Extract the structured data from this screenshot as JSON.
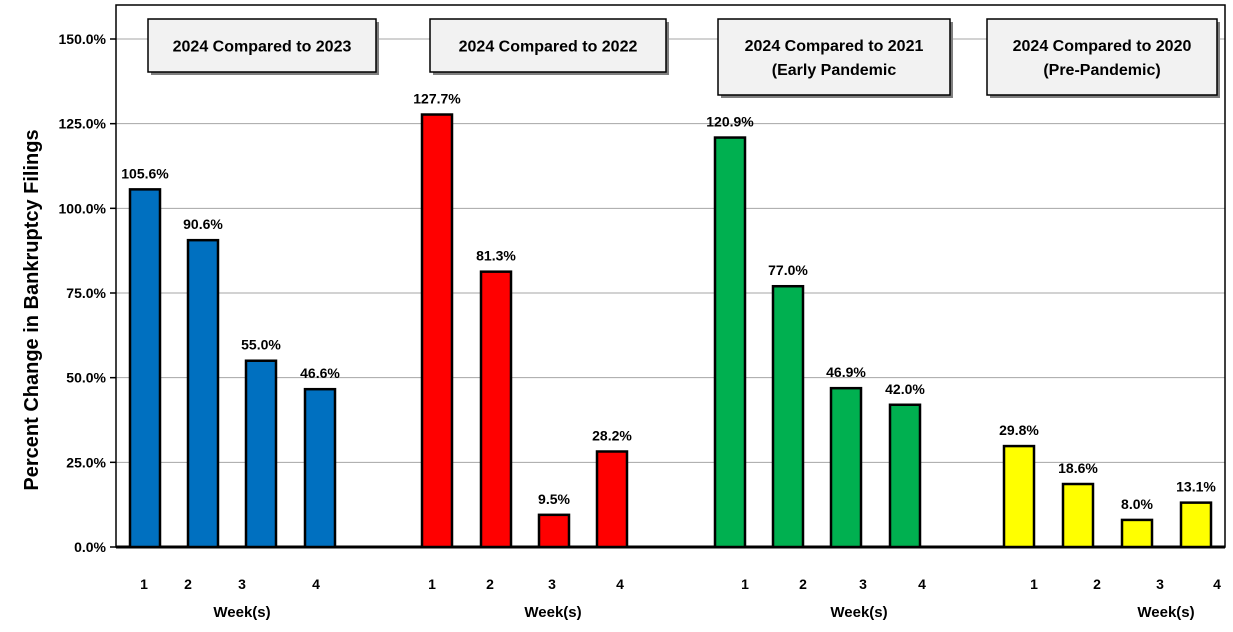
{
  "chart_data": {
    "type": "bar",
    "ylabel": "Percent Change in Bankruptcy Filings",
    "ylim": [
      0,
      155
    ],
    "y_ticks": [
      "0.0%",
      "25.0%",
      "50.0%",
      "75.0%",
      "100.0%",
      "125.0%",
      "150.0%"
    ],
    "y_tick_values": [
      0,
      25,
      50,
      75,
      100,
      125,
      150
    ],
    "grid": true,
    "groups": [
      {
        "title_lines": [
          "2024 Compared to 2023"
        ],
        "xlabel": "Week(s)",
        "categories": [
          "1",
          "2",
          "3",
          "4"
        ],
        "values": [
          105.6,
          90.6,
          55.0,
          46.6
        ],
        "labels": [
          "105.6%",
          "90.6%",
          "55.0%",
          "46.6%"
        ],
        "color": "#0070C0"
      },
      {
        "title_lines": [
          "2024 Compared to 2022"
        ],
        "xlabel": "Week(s)",
        "categories": [
          "1",
          "2",
          "3",
          "4"
        ],
        "values": [
          127.7,
          81.3,
          9.5,
          28.2
        ],
        "labels": [
          "127.7%",
          "81.3%",
          "9.5%",
          "28.2%"
        ],
        "color": "#FF0000"
      },
      {
        "title_lines": [
          "2024 Compared to 2021",
          "(Early Pandemic"
        ],
        "xlabel": "Week(s)",
        "categories": [
          "1",
          "2",
          "3",
          "4"
        ],
        "values": [
          120.9,
          77.0,
          46.9,
          42.0
        ],
        "labels": [
          "120.9%",
          "77.0%",
          "46.9%",
          "42.0%"
        ],
        "color": "#00B050"
      },
      {
        "title_lines": [
          "2024 Compared to 2020",
          "(Pre-Pandemic)"
        ],
        "xlabel": "Week(s)",
        "categories": [
          "1",
          "2",
          "3",
          "4"
        ],
        "values": [
          29.8,
          18.6,
          8.0,
          13.1
        ],
        "labels": [
          "29.8%",
          "18.6%",
          "8.0%",
          "13.1%"
        ],
        "color": "#FFFF00"
      }
    ]
  }
}
